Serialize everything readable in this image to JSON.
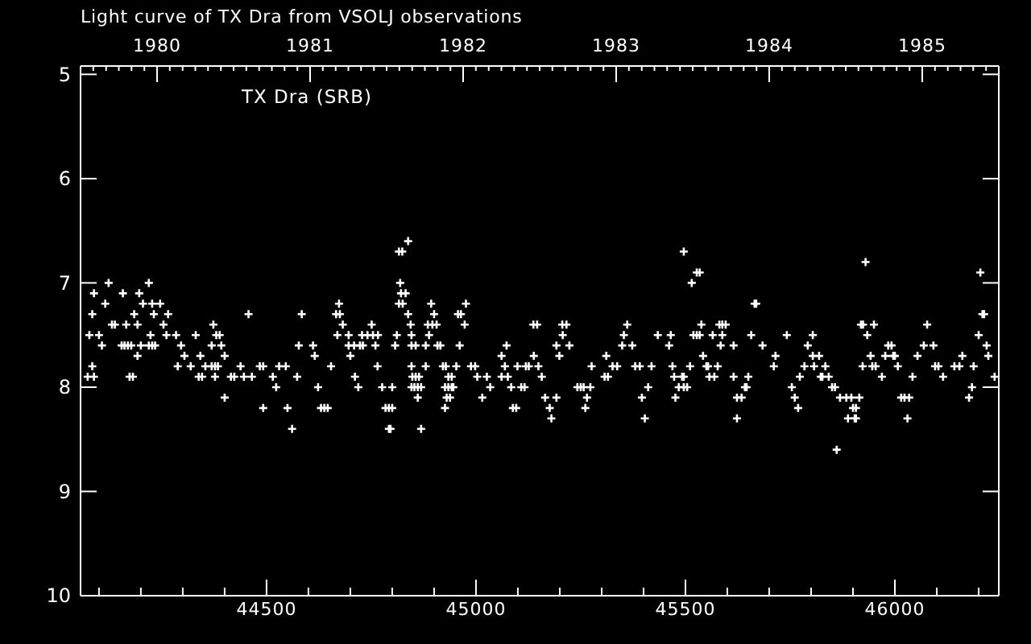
{
  "chart_data": {
    "type": "scatter",
    "title": "Light curve of TX Dra from VSOLJ observations",
    "annotations": [
      "TX Dra (SRB)"
    ],
    "x": [
      44838,
      44816,
      44824,
      45496,
      45930,
      45527,
      45534,
      46204,
      44123,
      44219,
      44819,
      45515,
      44088,
      44157,
      44196,
      44821,
      44832,
      44115,
      44205,
      44227,
      44246,
      44673,
      44816,
      44825,
      44893,
      44976,
      45665,
      45669,
      44084,
      44184,
      44231,
      44265,
      44457,
      44584,
      44666,
      44675,
      44838,
      44900,
      44957,
      44964,
      46209,
      46213,
      44131,
      44138,
      44165,
      44192,
      44254,
      44373,
      44682,
      44751,
      44844,
      44885,
      44896,
      44906,
      44973,
      45137,
      45146,
      45206,
      45216,
      45361,
      45538,
      45581,
      45588,
      45596,
      45919,
      45924,
      45950,
      46077,
      44077,
      44100,
      44223,
      44261,
      44284,
      44331,
      44380,
      44388,
      44669,
      44696,
      44728,
      44741,
      44754,
      44766,
      44811,
      44846,
      44888,
      45207,
      45353,
      45434,
      45465,
      45519,
      45527,
      45534,
      45565,
      45588,
      45657,
      45742,
      45804,
      45934,
      46200,
      44107,
      44154,
      44161,
      44169,
      44177,
      44200,
      44219,
      44227,
      44234,
      44296,
      44369,
      44392,
      44577,
      44611,
      44696,
      44709,
      44723,
      44730,
      44760,
      44807,
      44846,
      44856,
      44880,
      44908,
      44915,
      44961,
      45073,
      45192,
      45223,
      45349,
      45373,
      45461,
      45584,
      45615,
      45684,
      45792,
      45984,
      45992,
      46069,
      46092,
      46219,
      44192,
      44304,
      44342,
      44400,
      44615,
      44700,
      45061,
      45138,
      45199,
      45311,
      45542,
      45715,
      45804,
      45819,
      45942,
      45977,
      45996,
      46000,
      46054,
      46161,
      46223,
      44084,
      44288,
      44319,
      44354,
      44369,
      44377,
      44384,
      44438,
      44484,
      44492,
      44530,
      44546,
      44654,
      44765,
      44846,
      44880,
      44921,
      44928,
      44953,
      44988,
      44998,
      45069,
      45099,
      45119,
      45126,
      45149,
      45276,
      45326,
      45337,
      45380,
      45391,
      45419,
      45469,
      45511,
      45550,
      45554,
      45577,
      45711,
      45784,
      45807,
      45834,
      45923,
      45946,
      45954,
      46007,
      46096,
      46104,
      46142,
      46154,
      46188,
      44073,
      44088,
      44173,
      44181,
      44338,
      44346,
      44377,
      44415,
      44423,
      44446,
      44465,
      44515,
      44573,
      44711,
      44848,
      44856,
      44864,
      44934,
      44942,
      45003,
      45026,
      45061,
      45076,
      45157,
      45307,
      45315,
      45473,
      45492,
      45496,
      45557,
      45569,
      45615,
      45650,
      45773,
      45823,
      45827,
      45842,
      45969,
      46042,
      46115,
      46238,
      44523,
      44623,
      44719,
      44776,
      44800,
      44846,
      44853,
      44861,
      44869,
      44926,
      44934,
      44942,
      44946,
      45034,
      45084,
      45108,
      45116,
      45242,
      45250,
      45257,
      45273,
      45411,
      45484,
      45496,
      45504,
      45642,
      45646,
      45754,
      45850,
      45857,
      46184,
      44400,
      44861,
      44930,
      44938,
      45015,
      45165,
      45192,
      45265,
      45396,
      45476,
      45623,
      45634,
      45761,
      45869,
      45884,
      45896,
      45915,
      46015,
      46023,
      46034,
      46177,
      44492,
      44550,
      44630,
      44638,
      44646,
      44784,
      44792,
      44800,
      44926,
      45088,
      45096,
      45176,
      45261,
      45769,
      45900,
      45907,
      45180,
      45403,
      45623,
      45888,
      45904,
      45907,
      46030,
      44561,
      44792,
      44796,
      44869,
      45861
    ],
    "values": [
      6.6,
      6.7,
      6.7,
      6.7,
      6.8,
      6.9,
      6.9,
      6.9,
      7.0,
      7.0,
      7.0,
      7.0,
      7.1,
      7.1,
      7.1,
      7.1,
      7.1,
      7.2,
      7.2,
      7.2,
      7.2,
      7.2,
      7.2,
      7.2,
      7.2,
      7.2,
      7.2,
      7.2,
      7.3,
      7.3,
      7.3,
      7.3,
      7.3,
      7.3,
      7.3,
      7.3,
      7.3,
      7.3,
      7.3,
      7.3,
      7.3,
      7.3,
      7.4,
      7.4,
      7.4,
      7.4,
      7.4,
      7.4,
      7.4,
      7.4,
      7.4,
      7.4,
      7.4,
      7.4,
      7.4,
      7.4,
      7.4,
      7.4,
      7.4,
      7.4,
      7.4,
      7.4,
      7.4,
      7.4,
      7.4,
      7.4,
      7.4,
      7.4,
      7.5,
      7.5,
      7.5,
      7.5,
      7.5,
      7.5,
      7.5,
      7.5,
      7.5,
      7.5,
      7.5,
      7.5,
      7.5,
      7.5,
      7.5,
      7.5,
      7.5,
      7.5,
      7.5,
      7.5,
      7.5,
      7.5,
      7.5,
      7.5,
      7.5,
      7.5,
      7.5,
      7.5,
      7.5,
      7.5,
      7.5,
      7.6,
      7.6,
      7.6,
      7.6,
      7.6,
      7.6,
      7.6,
      7.6,
      7.6,
      7.6,
      7.6,
      7.6,
      7.6,
      7.6,
      7.6,
      7.6,
      7.6,
      7.6,
      7.6,
      7.6,
      7.6,
      7.6,
      7.6,
      7.6,
      7.6,
      7.6,
      7.6,
      7.6,
      7.6,
      7.6,
      7.6,
      7.6,
      7.6,
      7.6,
      7.6,
      7.6,
      7.6,
      7.6,
      7.6,
      7.6,
      7.6,
      7.7,
      7.7,
      7.7,
      7.7,
      7.7,
      7.7,
      7.7,
      7.7,
      7.7,
      7.7,
      7.7,
      7.7,
      7.7,
      7.7,
      7.7,
      7.7,
      7.7,
      7.7,
      7.7,
      7.7,
      7.7,
      7.8,
      7.8,
      7.8,
      7.8,
      7.8,
      7.8,
      7.8,
      7.8,
      7.8,
      7.8,
      7.8,
      7.8,
      7.8,
      7.8,
      7.8,
      7.8,
      7.8,
      7.8,
      7.8,
      7.8,
      7.8,
      7.8,
      7.8,
      7.8,
      7.8,
      7.8,
      7.8,
      7.8,
      7.8,
      7.8,
      7.8,
      7.8,
      7.8,
      7.8,
      7.8,
      7.8,
      7.8,
      7.8,
      7.8,
      7.8,
      7.8,
      7.8,
      7.8,
      7.8,
      7.8,
      7.8,
      7.8,
      7.8,
      7.8,
      7.8,
      7.9,
      7.9,
      7.9,
      7.9,
      7.9,
      7.9,
      7.9,
      7.9,
      7.9,
      7.9,
      7.9,
      7.9,
      7.9,
      7.9,
      7.9,
      7.9,
      7.9,
      7.9,
      7.9,
      7.9,
      7.9,
      7.9,
      7.9,
      7.9,
      7.9,
      7.9,
      7.9,
      7.9,
      7.9,
      7.9,
      7.9,
      7.9,
      7.9,
      7.9,
      7.9,
      7.9,
      7.9,
      7.9,
      7.9,
      7.9,
      7.9,
      8.0,
      8.0,
      8.0,
      8.0,
      8.0,
      8.0,
      8.0,
      8.0,
      8.0,
      8.0,
      8.0,
      8.0,
      8.0,
      8.0,
      8.0,
      8.0,
      8.0,
      8.0,
      8.0,
      8.0,
      8.0,
      8.0,
      8.0,
      8.0,
      8.0,
      8.0,
      8.0,
      8.0,
      8.0,
      8.0,
      8.0,
      8.1,
      8.1,
      8.1,
      8.1,
      8.1,
      8.1,
      8.1,
      8.1,
      8.1,
      8.1,
      8.1,
      8.1,
      8.1,
      8.1,
      8.1,
      8.1,
      8.1,
      8.1,
      8.1,
      8.1,
      8.1,
      8.2,
      8.2,
      8.2,
      8.2,
      8.2,
      8.2,
      8.2,
      8.2,
      8.2,
      8.2,
      8.2,
      8.2,
      8.2,
      8.2,
      8.2,
      8.2,
      8.3,
      8.3,
      8.3,
      8.3,
      8.3,
      8.3,
      8.3,
      8.4,
      8.4,
      8.4,
      8.4,
      8.6
    ],
    "color": "#ffffff",
    "marker": "cross",
    "xlim": [
      44056,
      46248
    ],
    "xticks": [
      {
        "value": 44100,
        "label": null
      },
      {
        "value": 44200,
        "label": null
      },
      {
        "value": 44300,
        "label": null
      },
      {
        "value": 44400,
        "label": null
      },
      44500,
      {
        "value": 44600,
        "label": null
      },
      {
        "value": 44700,
        "label": null
      },
      {
        "value": 44800,
        "label": null
      },
      {
        "value": 44900,
        "label": null
      },
      45000,
      {
        "value": 45100,
        "label": null
      },
      {
        "value": 45200,
        "label": null
      },
      {
        "value": 45300,
        "label": null
      },
      {
        "value": 45400,
        "label": null
      },
      45500,
      {
        "value": 45600,
        "label": null
      },
      {
        "value": 45700,
        "label": null
      },
      {
        "value": 45800,
        "label": null
      },
      {
        "value": 45900,
        "label": null
      },
      46000,
      {
        "value": 46100,
        "label": null
      },
      {
        "value": 46200,
        "label": null
      }
    ],
    "x2lim": [
      1979.5,
      1985.5
    ],
    "x2ticks": [
      {
        "value": 1979.583,
        "label": null
      },
      {
        "value": 1979.667,
        "label": null
      },
      {
        "value": 1979.75,
        "label": null
      },
      {
        "value": 1979.833,
        "label": null
      },
      {
        "value": 1979.917,
        "label": null
      },
      1980,
      {
        "value": 1980.083,
        "label": null
      },
      {
        "value": 1980.167,
        "label": null
      },
      {
        "value": 1980.25,
        "label": null
      },
      {
        "value": 1980.333,
        "label": null
      },
      {
        "value": 1980.417,
        "label": null
      },
      {
        "value": 1980.5,
        "label": null
      },
      {
        "value": 1980.583,
        "label": null
      },
      {
        "value": 1980.667,
        "label": null
      },
      {
        "value": 1980.75,
        "label": null
      },
      {
        "value": 1980.833,
        "label": null
      },
      {
        "value": 1980.917,
        "label": null
      },
      1981,
      {
        "value": 1981.083,
        "label": null
      },
      {
        "value": 1981.167,
        "label": null
      },
      {
        "value": 1981.25,
        "label": null
      },
      {
        "value": 1981.333,
        "label": null
      },
      {
        "value": 1981.417,
        "label": null
      },
      {
        "value": 1981.5,
        "label": null
      },
      {
        "value": 1981.583,
        "label": null
      },
      {
        "value": 1981.667,
        "label": null
      },
      {
        "value": 1981.75,
        "label": null
      },
      {
        "value": 1981.833,
        "label": null
      },
      {
        "value": 1981.917,
        "label": null
      },
      1982,
      {
        "value": 1982.083,
        "label": null
      },
      {
        "value": 1982.167,
        "label": null
      },
      {
        "value": 1982.25,
        "label": null
      },
      {
        "value": 1982.333,
        "label": null
      },
      {
        "value": 1982.417,
        "label": null
      },
      {
        "value": 1982.5,
        "label": null
      },
      {
        "value": 1982.583,
        "label": null
      },
      {
        "value": 1982.667,
        "label": null
      },
      {
        "value": 1982.75,
        "label": null
      },
      {
        "value": 1982.833,
        "label": null
      },
      {
        "value": 1982.917,
        "label": null
      },
      1983,
      {
        "value": 1983.083,
        "label": null
      },
      {
        "value": 1983.167,
        "label": null
      },
      {
        "value": 1983.25,
        "label": null
      },
      {
        "value": 1983.333,
        "label": null
      },
      {
        "value": 1983.417,
        "label": null
      },
      {
        "value": 1983.5,
        "label": null
      },
      {
        "value": 1983.583,
        "label": null
      },
      {
        "value": 1983.667,
        "label": null
      },
      {
        "value": 1983.75,
        "label": null
      },
      {
        "value": 1983.833,
        "label": null
      },
      {
        "value": 1983.917,
        "label": null
      },
      1984,
      {
        "value": 1984.083,
        "label": null
      },
      {
        "value": 1984.167,
        "label": null
      },
      {
        "value": 1984.25,
        "label": null
      },
      {
        "value": 1984.333,
        "label": null
      },
      {
        "value": 1984.417,
        "label": null
      },
      {
        "value": 1984.5,
        "label": null
      },
      {
        "value": 1984.583,
        "label": null
      },
      {
        "value": 1984.667,
        "label": null
      },
      {
        "value": 1984.75,
        "label": null
      },
      {
        "value": 1984.833,
        "label": null
      },
      {
        "value": 1984.917,
        "label": null
      },
      1985,
      {
        "value": 1985.083,
        "label": null
      },
      {
        "value": 1985.167,
        "label": null
      },
      {
        "value": 1985.25,
        "label": null
      },
      {
        "value": 1985.333,
        "label": null
      },
      {
        "value": 1985.417,
        "label": null
      }
    ],
    "ylim": [
      10,
      4.92
    ],
    "yticks": [
      5,
      6,
      7,
      8,
      9,
      10
    ]
  }
}
